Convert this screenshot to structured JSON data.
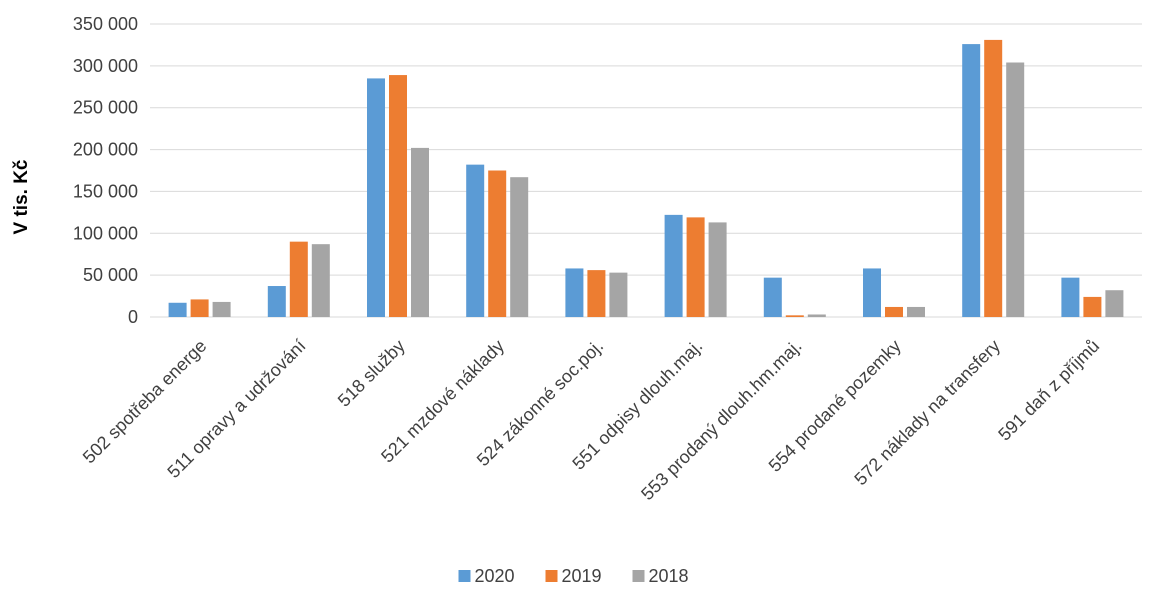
{
  "chart_data": {
    "type": "bar",
    "title": "",
    "xlabel": "",
    "ylabel": "V tis. Kč",
    "ylim": [
      0,
      350000
    ],
    "yticks": [
      0,
      50000,
      100000,
      150000,
      200000,
      250000,
      300000,
      350000
    ],
    "ytick_labels": [
      "0",
      "50 000",
      "100 000",
      "150 000",
      "200 000",
      "250 000",
      "300 000",
      "350 000"
    ],
    "grid": true,
    "legend_position": "bottom",
    "categories": [
      "502 spotřeba energe",
      "511 opravy a udržování",
      "518 služby",
      "521 mzdové náklady",
      "524 zákonné soc.poj.",
      "551 odpisy dlouh.maj.",
      "553 prodaný dlouh.hm.maj.",
      "554 prodané pozemky",
      "572 náklady na transfery",
      "591 daň z příjmů"
    ],
    "series": [
      {
        "name": "2020",
        "color": "#5b9bd5",
        "values": [
          17000,
          37000,
          285000,
          182000,
          58000,
          122000,
          47000,
          58000,
          326000,
          47000
        ]
      },
      {
        "name": "2019",
        "color": "#ed7d31",
        "values": [
          21000,
          90000,
          289000,
          175000,
          56000,
          119000,
          2000,
          12000,
          331000,
          24000
        ]
      },
      {
        "name": "2018",
        "color": "#a5a5a5",
        "values": [
          18000,
          87000,
          202000,
          167000,
          53000,
          113000,
          3000,
          12000,
          304000,
          32000
        ]
      }
    ]
  }
}
